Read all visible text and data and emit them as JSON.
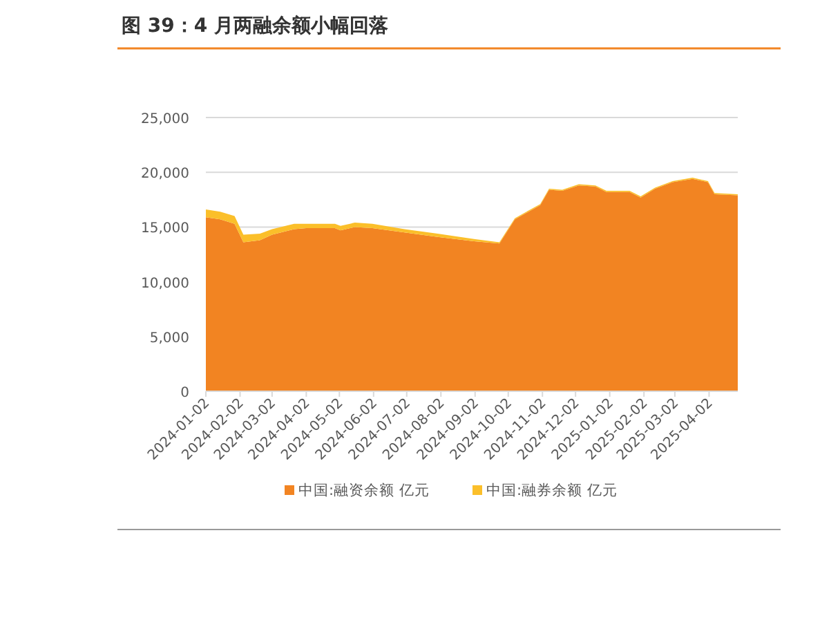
{
  "chart_data": {
    "type": "area",
    "title": "图 39：4 月两融余额小幅回落",
    "stacked": true,
    "x": [
      "2024-01-02",
      "2024-01-15",
      "2024-01-28",
      "2024-02-05",
      "2024-02-20",
      "2024-03-02",
      "2024-03-22",
      "2024-04-02",
      "2024-04-28",
      "2024-05-03",
      "2024-05-16",
      "2024-06-01",
      "2024-06-30",
      "2024-07-30",
      "2024-09-01",
      "2024-09-24",
      "2024-10-08",
      "2024-10-31",
      "2024-11-08",
      "2024-11-20",
      "2024-12-05",
      "2024-12-20",
      "2024-12-30",
      "2025-01-20",
      "2025-01-30",
      "2025-02-12",
      "2025-02-28",
      "2025-03-18",
      "2025-04-01",
      "2025-04-07",
      "2025-04-28"
    ],
    "series": [
      {
        "name": "中国:融资余额 亿元",
        "color": "#f28422",
        "values": [
          15900,
          15700,
          15300,
          13600,
          13800,
          14300,
          14800,
          14900,
          14900,
          14700,
          15000,
          14900,
          14500,
          14100,
          13700,
          13500,
          15700,
          17000,
          18400,
          18300,
          18800,
          18700,
          18200,
          18200,
          17700,
          18500,
          19100,
          19400,
          19100,
          18000,
          17900
        ]
      },
      {
        "name": "中国:融券余额 亿元",
        "color": "#fbbf2a",
        "values": [
          700,
          700,
          700,
          700,
          600,
          500,
          500,
          400,
          400,
          400,
          400,
          400,
          300,
          300,
          200,
          100,
          100,
          100,
          100,
          100,
          100,
          100,
          100,
          100,
          100,
          100,
          100,
          100,
          100,
          100,
          100
        ]
      }
    ],
    "xlim": [
      "2024-01-02",
      "2025-04-28"
    ],
    "xticks": [
      "2024-01-02",
      "2024-02-02",
      "2024-03-02",
      "2024-04-02",
      "2024-05-02",
      "2024-06-02",
      "2024-07-02",
      "2024-08-02",
      "2024-09-02",
      "2024-10-02",
      "2024-11-02",
      "2024-12-02",
      "2025-01-02",
      "2025-02-02",
      "2025-03-02",
      "2025-04-02"
    ],
    "ylim": [
      0,
      25000
    ],
    "yticks": [
      0,
      {
        "value": 5000,
        "label": "5,000"
      },
      {
        "value": 10000,
        "label": "10,000"
      },
      {
        "value": 15000,
        "label": "15,000"
      },
      {
        "value": 20000,
        "label": "20,000"
      },
      {
        "value": 25000,
        "label": "25,000"
      }
    ],
    "grid": "y",
    "legend": "bottom"
  }
}
